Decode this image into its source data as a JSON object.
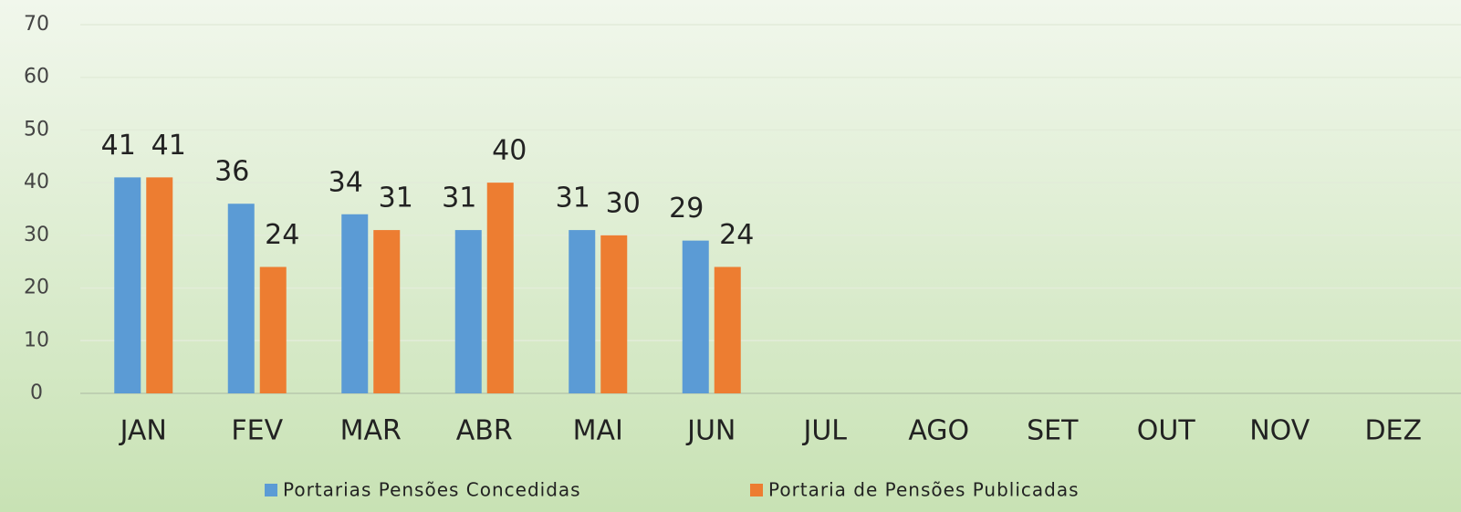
{
  "chart_data": {
    "type": "bar",
    "categories": [
      "JAN",
      "FEV",
      "MAR",
      "ABR",
      "MAI",
      "JUN",
      "JUL",
      "AGO",
      "SET",
      "OUT",
      "NOV",
      "DEZ"
    ],
    "series": [
      {
        "name": "Portarias Pensões Concedidas",
        "color": "#5b9bd5",
        "values": [
          41,
          36,
          34,
          31,
          31,
          29,
          null,
          null,
          null,
          null,
          null,
          null
        ]
      },
      {
        "name": "Portaria de Pensões Publicadas",
        "color": "#ed7d31",
        "values": [
          41,
          24,
          31,
          40,
          30,
          24,
          null,
          null,
          null,
          null,
          null,
          null
        ]
      }
    ],
    "ylim": [
      0,
      70
    ],
    "yticks": [
      0,
      10,
      20,
      30,
      40,
      50,
      60,
      70
    ],
    "grid": true,
    "legend": "bottom"
  }
}
